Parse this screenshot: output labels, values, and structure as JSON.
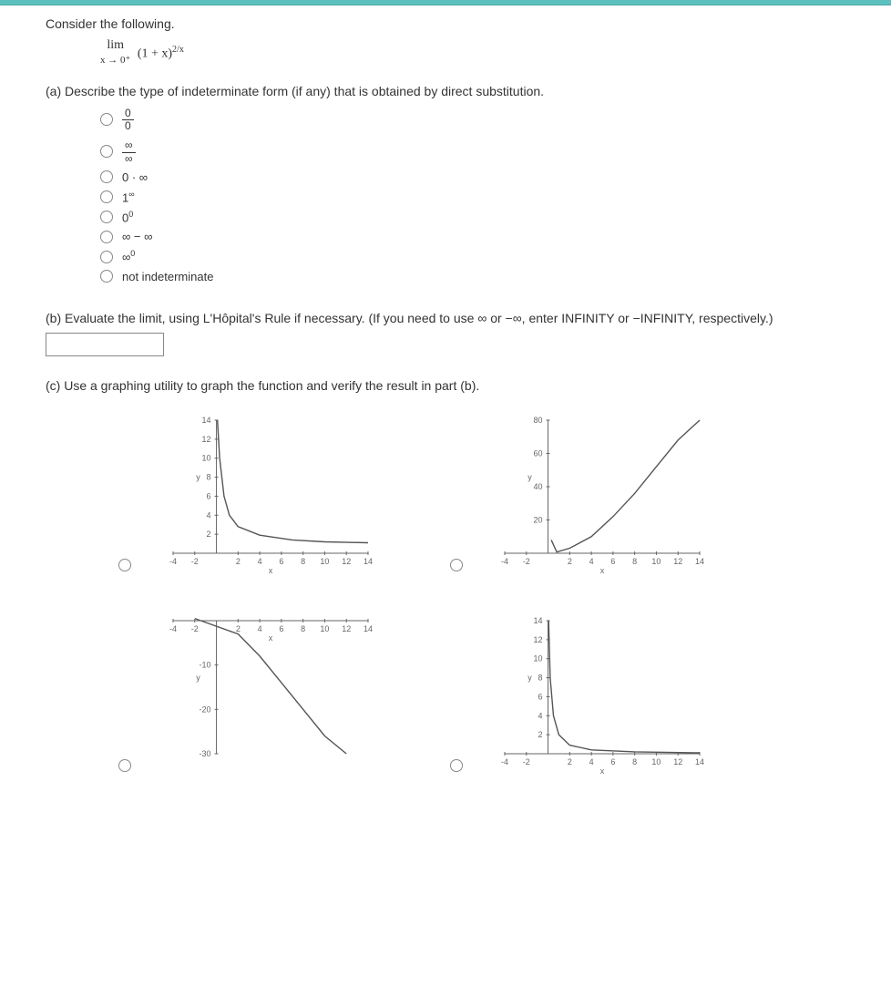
{
  "prompt": "Consider the following.",
  "limit": {
    "lim": "lim",
    "approach": "x → 0⁺",
    "body_base": "(1 + x)",
    "body_exp": "2/x"
  },
  "partA": {
    "label": "(a) Describe the type of indeterminate form (if any) that is obtained by direct substitution.",
    "options": [
      {
        "type": "frac",
        "num": "0",
        "den": "0"
      },
      {
        "type": "frac",
        "num": "∞",
        "den": "∞"
      },
      {
        "type": "text",
        "text": "0 · ∞"
      },
      {
        "type": "sup",
        "base": "1",
        "sup": "∞"
      },
      {
        "type": "sup",
        "base": "0",
        "sup": "0"
      },
      {
        "type": "text",
        "text": "∞ − ∞"
      },
      {
        "type": "sup",
        "base": "∞",
        "sup": "0"
      },
      {
        "type": "text",
        "text": "not indeterminate"
      }
    ]
  },
  "partB": {
    "label": "(b) Evaluate the limit, using L'Hôpital's Rule if necessary. (If you need to use ∞ or −∞, enter INFINITY or −INFINITY, respectively.)"
  },
  "partC": {
    "label": "(c) Use a graphing utility to graph the function and verify the result in part (b)."
  },
  "chart_common": {
    "axis_color": "#666666",
    "grid_color": "#d8d8d8",
    "curve_color": "#555555",
    "label_fontsize": 9,
    "label_color": "#666666",
    "ylabel": "y",
    "xlabel": "x"
  },
  "charts": [
    {
      "id": "chart-a",
      "xlim": [
        -4,
        14
      ],
      "x_ticks": [
        -4,
        -2,
        2,
        4,
        6,
        8,
        10,
        12,
        14
      ],
      "ylim": [
        0,
        14
      ],
      "y_ticks": [
        2,
        4,
        6,
        8,
        10,
        12,
        14
      ],
      "curve_type": "decay",
      "curve": [
        [
          0.1,
          14
        ],
        [
          0.3,
          10
        ],
        [
          0.7,
          6
        ],
        [
          1.2,
          4
        ],
        [
          2,
          2.8
        ],
        [
          4,
          1.9
        ],
        [
          7,
          1.4
        ],
        [
          10,
          1.2
        ],
        [
          14,
          1.1
        ]
      ]
    },
    {
      "id": "chart-b",
      "xlim": [
        -4,
        14
      ],
      "x_ticks": [
        -4,
        -2,
        2,
        4,
        6,
        8,
        10,
        12,
        14
      ],
      "ylim": [
        0,
        80
      ],
      "y_ticks": [
        20,
        40,
        60,
        80
      ],
      "curve_type": "growth",
      "curve": [
        [
          0.3,
          8
        ],
        [
          0.8,
          0.7
        ],
        [
          2,
          3
        ],
        [
          4,
          10
        ],
        [
          6,
          22
        ],
        [
          8,
          36
        ],
        [
          10,
          52
        ],
        [
          12,
          68
        ],
        [
          14,
          80
        ]
      ]
    },
    {
      "id": "chart-c",
      "xlim": [
        -4,
        14
      ],
      "x_ticks": [
        -4,
        -2,
        2,
        4,
        6,
        8,
        10,
        12,
        14
      ],
      "ylim": [
        -30,
        0
      ],
      "y_ticks": [
        -10,
        -20,
        -30
      ],
      "curve_type": "decline",
      "curve": [
        [
          -2,
          0.5
        ],
        [
          2,
          -3
        ],
        [
          4,
          -8
        ],
        [
          6,
          -14
        ],
        [
          8,
          -20
        ],
        [
          10,
          -26
        ],
        [
          12,
          -30
        ]
      ]
    },
    {
      "id": "chart-d",
      "xlim": [
        -4,
        14
      ],
      "x_ticks": [
        -4,
        -2,
        2,
        4,
        6,
        8,
        10,
        12,
        14
      ],
      "ylim": [
        0,
        14
      ],
      "y_ticks": [
        2,
        4,
        6,
        8,
        10,
        12,
        14
      ],
      "curve_type": "spike-decay",
      "curve": [
        [
          0.05,
          14
        ],
        [
          0.2,
          8
        ],
        [
          0.5,
          4
        ],
        [
          1,
          2
        ],
        [
          2,
          0.9
        ],
        [
          4,
          0.4
        ],
        [
          8,
          0.2
        ],
        [
          14,
          0.1
        ]
      ]
    }
  ]
}
